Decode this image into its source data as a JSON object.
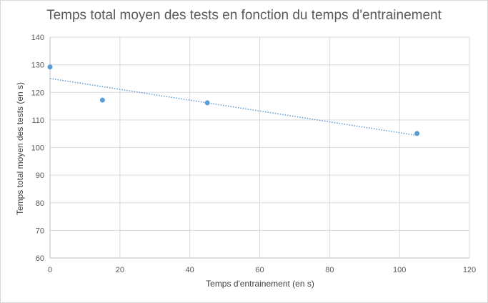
{
  "chart_data": {
    "type": "scatter",
    "title": "Temps total moyen des tests en fonction du temps d'entrainement",
    "xlabel": "Temps d'entrainement (en s)",
    "ylabel": "Temps total moyen des tests (en s)",
    "xlim": [
      0,
      120
    ],
    "ylim": [
      60,
      140
    ],
    "xticks": [
      0,
      20,
      40,
      60,
      80,
      100,
      120
    ],
    "yticks": [
      60,
      70,
      80,
      90,
      100,
      110,
      120,
      130,
      140
    ],
    "grid": true,
    "series": [
      {
        "color": "#5b9bd5",
        "points": [
          {
            "x": 0,
            "y": 129.2
          },
          {
            "x": 15,
            "y": 117.2
          },
          {
            "x": 45,
            "y": 116.2
          },
          {
            "x": 105,
            "y": 105.1
          }
        ],
        "trendline": {
          "type": "linear",
          "style": "dotted",
          "color": "#5b9bd5"
        }
      }
    ]
  }
}
